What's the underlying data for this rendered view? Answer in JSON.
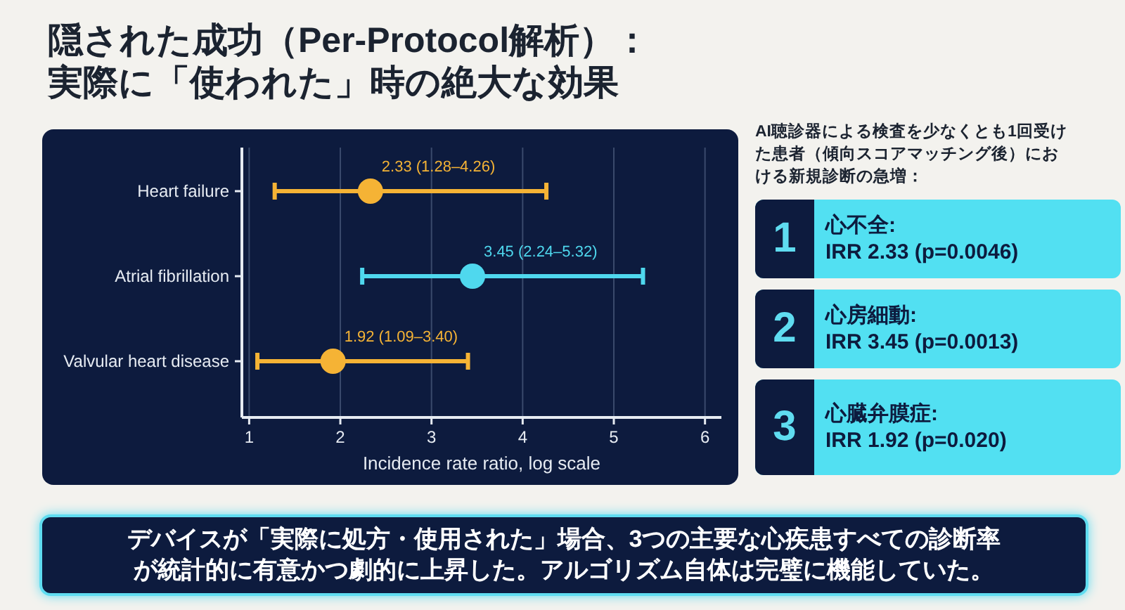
{
  "chart_data": [
    {
      "type": "scatter",
      "orientation": "horizontal",
      "title": "隠された成功（Per-Protocol解析）：実際に「使われた」時の絶大な効果",
      "categories": [
        "Heart failure",
        "Atrial fibrillation",
        "Valvular heart disease"
      ],
      "values": [
        2.33,
        3.45,
        1.92
      ],
      "errors": [
        [
          1.28,
          4.26
        ],
        [
          2.24,
          5.32
        ],
        [
          1.09,
          3.4
        ]
      ],
      "colors": [
        "#f5b335",
        "#4fd8ee",
        "#f5b335"
      ],
      "value_labels": [
        "2.33 (1.28–4.26)",
        "3.45 (2.24–5.32)",
        "1.92 (1.09–3.40)"
      ],
      "xlim": [
        0.92,
        6.18
      ],
      "xticks": [
        1,
        2,
        3,
        4,
        5,
        6
      ],
      "grid": "x",
      "marker": "circle",
      "xlabel": "Incidence rate ratio, log scale",
      "annotations": [
        "デバイスが「実際に処方・使用された」場合、3つの主要な心疾患すべての診断率が統計的に有意かつ劇的に上昇した。アルゴリズム自体は完璧に機能していた。"
      ]
    },
    {
      "type": "other",
      "title": "AI聴診器による検査を少なくとも1回受けた患者（傾向スコアマッチング後）における新規診断の急増：",
      "annotations": [
        "1",
        "心不全:",
        "IRR 2.33 (p=0.0046)",
        "2",
        "心房細動:",
        "IRR 3.45 (p=0.0013)",
        "3",
        "心臓弁膜症:",
        "IRR 1.92 (p=0.020)"
      ]
    }
  ]
}
